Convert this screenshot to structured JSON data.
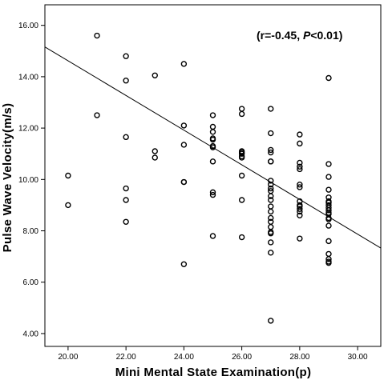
{
  "chart_data": {
    "type": "scatter",
    "xlabel": "Mini Mental State Examination(p)",
    "ylabel": "Pulse Wave Velocity(m/s)",
    "xlim": [
      19.2,
      30.8
    ],
    "ylim": [
      3.5,
      16.8
    ],
    "x_ticks": [
      "20.00",
      "22.00",
      "24.00",
      "26.00",
      "28.00",
      "30.00"
    ],
    "y_ticks": [
      "4.00",
      "6.00",
      "8.00",
      "10.00",
      "12.00",
      "14.00",
      "16.00"
    ],
    "grid": false,
    "annotation": {
      "prefix": "(r=-0.45, ",
      "italic": "P",
      "suffix": "<0.01)"
    },
    "regression_line": {
      "x": [
        19.2,
        30.8
      ],
      "y": [
        15.16,
        7.33
      ]
    },
    "points": {
      "x": [
        20,
        20,
        21,
        21,
        22,
        22,
        22,
        22,
        22,
        22,
        23,
        23,
        23,
        24,
        24,
        24,
        24,
        24,
        24,
        25,
        25,
        25,
        25,
        25,
        25,
        25,
        25,
        25,
        25,
        25,
        26,
        26,
        26,
        26,
        26,
        26,
        26,
        26,
        26,
        26,
        27,
        27,
        27,
        27,
        27,
        27,
        27,
        27,
        27,
        27,
        27,
        27,
        27,
        27,
        27,
        27,
        27,
        27,
        27,
        27,
        27,
        27,
        28,
        28,
        28,
        28,
        28,
        28,
        28,
        28,
        28,
        28,
        28,
        28,
        28,
        28,
        29,
        29,
        29,
        29,
        29,
        29,
        29,
        29,
        29,
        29,
        29,
        29,
        29,
        29,
        29,
        29,
        29,
        29,
        29,
        29
      ],
      "y": [
        10.15,
        9.0,
        15.6,
        12.5,
        14.8,
        13.85,
        11.65,
        9.65,
        9.2,
        8.35,
        14.05,
        11.1,
        10.85,
        14.5,
        12.1,
        11.35,
        9.9,
        9.9,
        6.7,
        12.5,
        12.05,
        11.85,
        11.6,
        11.3,
        11.25,
        10.7,
        9.5,
        9.4,
        7.8,
        11.55,
        12.75,
        12.55,
        11.1,
        11.0,
        10.9,
        10.85,
        10.15,
        9.2,
        7.75,
        11.05,
        12.75,
        11.8,
        11.15,
        11.05,
        10.7,
        9.95,
        9.8,
        9.65,
        9.35,
        9.2,
        8.95,
        8.75,
        8.5,
        8.15,
        7.95,
        7.9,
        7.55,
        7.15,
        4.5,
        10.7,
        9.55,
        8.35,
        11.75,
        11.4,
        10.65,
        10.5,
        10.4,
        9.8,
        9.7,
        9.15,
        9.0,
        8.95,
        8.85,
        8.75,
        8.6,
        7.7,
        13.95,
        10.6,
        10.1,
        9.6,
        9.15,
        9.1,
        9.0,
        8.9,
        8.8,
        8.65,
        8.5,
        8.45,
        8.2,
        7.6,
        7.1,
        6.9,
        6.8,
        6.75,
        8.7,
        9.3
      ]
    }
  }
}
